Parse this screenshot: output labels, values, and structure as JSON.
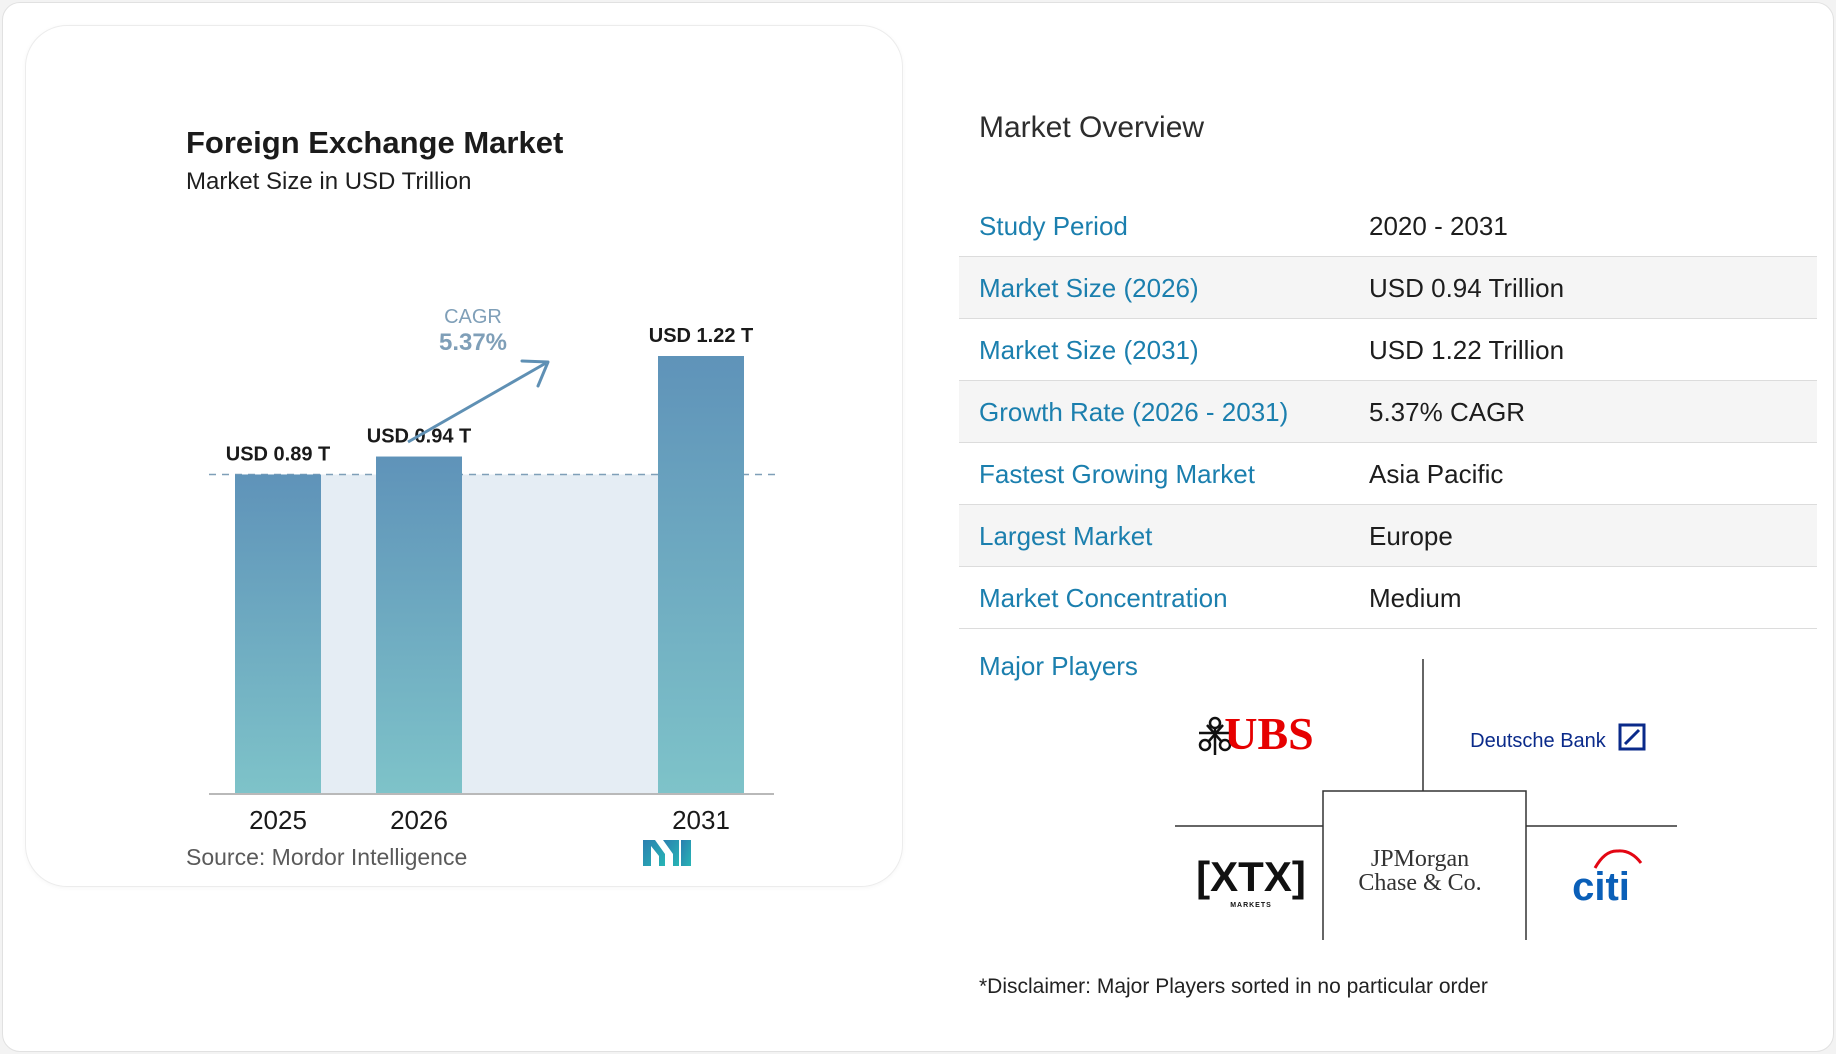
{
  "chart_data": {
    "type": "bar",
    "title": "Foreign Exchange Market",
    "subtitle": "Market Size in USD Trillion",
    "categories": [
      "2025",
      "2026",
      "2031"
    ],
    "values": [
      0.89,
      0.94,
      1.22
    ],
    "data_labels": [
      "USD 0.89 T",
      "USD 0.94 T",
      "USD 1.22 T"
    ],
    "ylim": [
      0,
      1.22
    ],
    "grid": false,
    "cagr": {
      "label": "CAGR",
      "value": "5.37%"
    },
    "source_label": "Source:",
    "source_name": "Mordor Intelligence",
    "colors": {
      "bar_top": "#5f93b9",
      "bar_bottom": "#7ec3c9",
      "band": "#e5edf4",
      "dashed": "#7f9fb8",
      "arrow": "#5f90b4"
    }
  },
  "overview": {
    "title": "Market Overview",
    "rows": [
      {
        "label": "Study Period",
        "value": "2020 - 2031"
      },
      {
        "label": "Market Size (2026)",
        "value": "USD 0.94 Trillion"
      },
      {
        "label": "Market Size (2031)",
        "value": "USD 1.22 Trillion"
      },
      {
        "label": "Growth Rate (2026 - 2031)",
        "value": "5.37% CAGR"
      },
      {
        "label": "Fastest Growing Market",
        "value": "Asia Pacific"
      },
      {
        "label": "Largest Market",
        "value": "Europe"
      },
      {
        "label": "Market Concentration",
        "value": "Medium"
      }
    ],
    "label_color": "#1b7fae"
  },
  "major_players": {
    "label": "Major Players",
    "logos": [
      {
        "name": "UBS",
        "icon": "ubs-keys-icon",
        "color": "#e60000"
      },
      {
        "name": "Deutsche Bank",
        "icon": "deutsche-bank-slash-icon",
        "color": "#0a2a8a"
      },
      {
        "name": "XTX",
        "sub": "MARKETS",
        "color": "#111111"
      },
      {
        "name": "JPMorgan Chase & Co.",
        "lines": [
          "JPMorgan",
          "Chase & Co."
        ],
        "color": "#333333"
      },
      {
        "name": "citi",
        "color": "#0a5fb8"
      }
    ]
  },
  "disclaimer": "*Disclaimer: Major Players sorted in no particular order",
  "brand": {
    "logo": "mordor-intelligence-logo-icon"
  }
}
